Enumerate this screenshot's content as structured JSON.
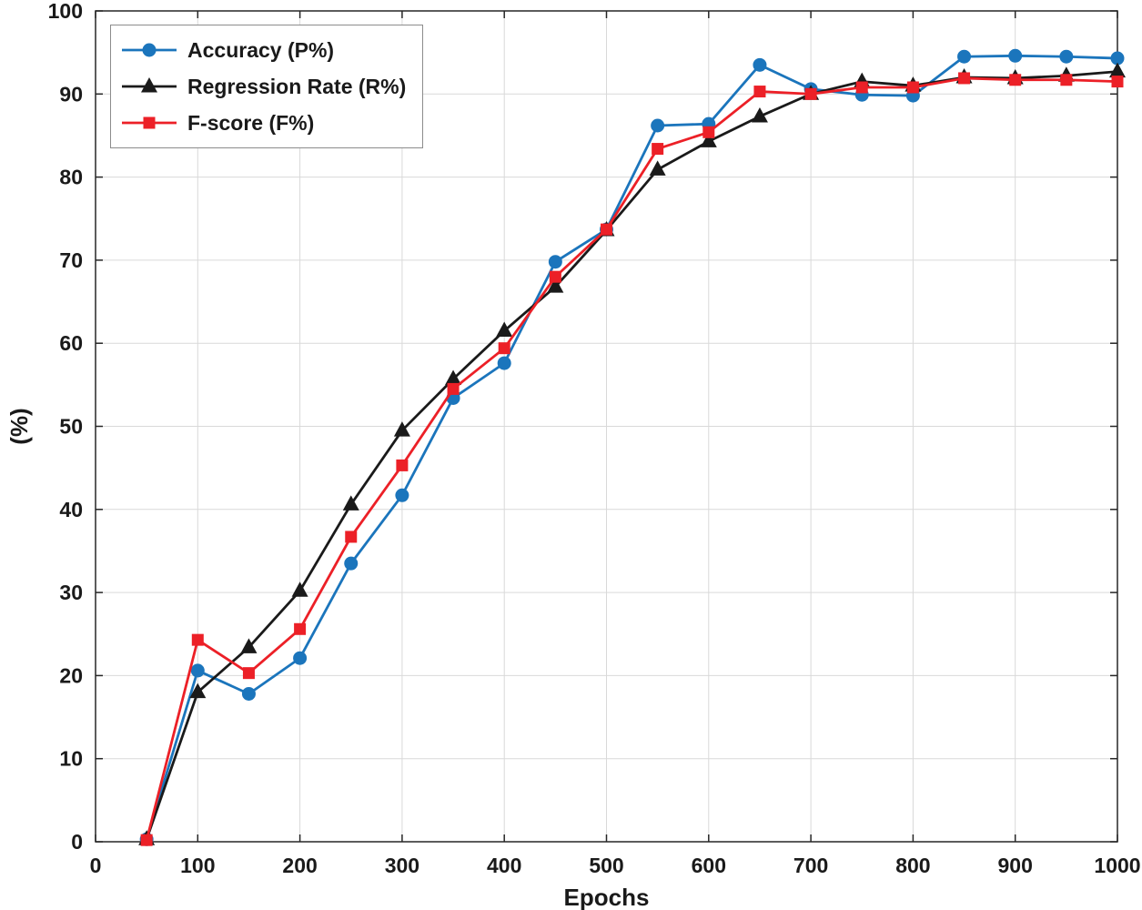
{
  "chart_data": {
    "type": "line",
    "title": "",
    "xlabel": "Epochs",
    "ylabel": "(%)",
    "xlim": [
      0,
      1000
    ],
    "ylim": [
      0,
      100
    ],
    "xticks": [
      0,
      100,
      200,
      300,
      400,
      500,
      600,
      700,
      800,
      900,
      1000
    ],
    "yticks": [
      0,
      10,
      20,
      30,
      40,
      50,
      60,
      70,
      80,
      90,
      100
    ],
    "grid": true,
    "legend_position": "top-left",
    "x": [
      50,
      100,
      150,
      200,
      250,
      300,
      350,
      400,
      450,
      500,
      550,
      600,
      650,
      700,
      750,
      800,
      850,
      900,
      950,
      1000
    ],
    "series": [
      {
        "name": "Accuracy (P%)",
        "color": "#1b75bc",
        "marker": "circle",
        "values": [
          0.3,
          20.6,
          17.8,
          22.1,
          33.5,
          41.7,
          53.4,
          57.6,
          69.8,
          73.7,
          86.2,
          86.4,
          93.5,
          90.6,
          89.9,
          89.8,
          94.5,
          94.6,
          94.5,
          94.3
        ]
      },
      {
        "name": "Regression Rate (R%)",
        "color": "#1a1a1a",
        "marker": "triangle",
        "values": [
          0.3,
          18.0,
          23.4,
          30.2,
          40.6,
          49.5,
          55.7,
          61.5,
          66.8,
          73.6,
          80.9,
          84.3,
          87.3,
          90.0,
          91.5,
          91.0,
          92.0,
          91.9,
          92.2,
          92.7
        ]
      },
      {
        "name": "F-score (F%)",
        "color": "#ec2027",
        "marker": "square",
        "values": [
          0.2,
          24.3,
          20.3,
          25.6,
          36.7,
          45.3,
          54.5,
          59.4,
          68.0,
          73.7,
          83.4,
          85.4,
          90.3,
          90.0,
          90.8,
          90.8,
          91.9,
          91.7,
          91.7,
          91.5
        ]
      }
    ],
    "style": {
      "grid_color": "#d9d9d9",
      "axis_color": "#262626",
      "background": "#ffffff"
    }
  }
}
